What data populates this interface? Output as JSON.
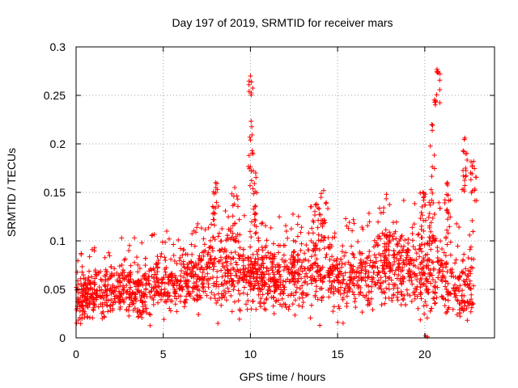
{
  "chart_data": {
    "type": "scatter",
    "title": "Day 197 of 2019, SRMTID for receiver mars",
    "xlabel": "GPS time / hours",
    "ylabel": "SRMTID / TECUs",
    "xlim": [
      0,
      24
    ],
    "ylim": [
      0,
      0.3
    ],
    "xticks": [
      0,
      5,
      10,
      15,
      20
    ],
    "xtick_labels": [
      "0",
      "5",
      "10",
      "15",
      "20"
    ],
    "yticks": [
      0,
      0.05,
      0.1,
      0.15,
      0.2,
      0.25,
      0.3
    ],
    "ytick_labels": [
      "0",
      "0.05",
      "0.1",
      "0.15",
      "0.2",
      "0.25",
      "0.3"
    ],
    "grid": true,
    "marker": "+",
    "color": "#ff0000",
    "n_points": 2200,
    "x_range": [
      0,
      22.8
    ],
    "band": {
      "x": [
        0,
        2,
        4,
        6,
        7,
        8,
        9,
        10,
        11,
        12,
        13,
        14,
        15,
        16,
        17,
        18,
        19,
        20,
        21,
        22,
        22.8
      ],
      "center": [
        0.04,
        0.05,
        0.05,
        0.06,
        0.065,
        0.075,
        0.07,
        0.065,
        0.06,
        0.065,
        0.068,
        0.07,
        0.065,
        0.06,
        0.07,
        0.075,
        0.07,
        0.07,
        0.065,
        0.05,
        0.055
      ],
      "spread": [
        0.022,
        0.026,
        0.026,
        0.026,
        0.03,
        0.038,
        0.034,
        0.03,
        0.028,
        0.03,
        0.032,
        0.036,
        0.032,
        0.03,
        0.034,
        0.036,
        0.034,
        0.036,
        0.036,
        0.034,
        0.034
      ]
    },
    "spikes": [
      {
        "x": 10.0,
        "y_max": 0.27,
        "y_min": 0.15
      },
      {
        "x": 10.3,
        "y_max": 0.17,
        "y_min": 0.1
      },
      {
        "x": 8.0,
        "y_max": 0.16,
        "y_min": 0.1
      },
      {
        "x": 9.1,
        "y_max": 0.155,
        "y_min": 0.1
      },
      {
        "x": 14.2,
        "y_max": 0.152,
        "y_min": 0.1
      },
      {
        "x": 13.8,
        "y_max": 0.138,
        "y_min": 0.09
      },
      {
        "x": 17.8,
        "y_max": 0.148,
        "y_min": 0.09
      },
      {
        "x": 19.9,
        "y_max": 0.15,
        "y_min": 0.1
      },
      {
        "x": 20.4,
        "y_max": 0.22,
        "y_min": 0.1
      },
      {
        "x": 20.7,
        "y_max": 0.277,
        "y_min": 0.24
      },
      {
        "x": 21.3,
        "y_max": 0.16,
        "y_min": 0.1
      },
      {
        "x": 22.3,
        "y_max": 0.206,
        "y_min": 0.15
      },
      {
        "x": 22.8,
        "y_max": 0.182,
        "y_min": 0.14
      }
    ]
  }
}
